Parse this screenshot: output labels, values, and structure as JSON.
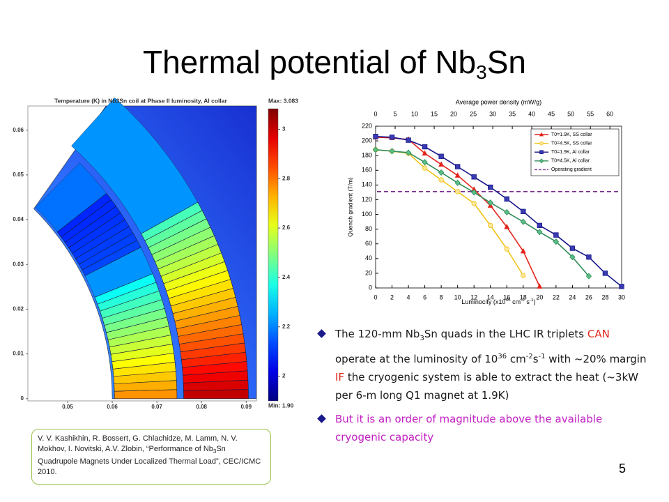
{
  "title": [
    "Thermal potential of Nb",
    "3",
    "Sn"
  ],
  "thermal_plot": {
    "title": "Temperature (K) in Nb3Sn coil at Phase II luminosity, Al collar",
    "max_label": "Max: 3.083",
    "min_label": "Min: 1.90",
    "xlim": [
      0.0411,
      0.0923
    ],
    "ylim": [
      -0.0005,
      0.0654
    ],
    "xticks": [
      0.05,
      0.06,
      0.07,
      0.08,
      0.09
    ],
    "yticks": [
      0,
      0.01,
      0.02,
      0.03,
      0.04,
      0.05,
      0.06
    ],
    "clim": [
      1.9,
      3.083
    ],
    "cticks": [
      2,
      2.2,
      2.4,
      2.6,
      2.8,
      3
    ]
  },
  "chart_data": {
    "type": "line",
    "x2label": "Average power density (mW/g)",
    "xlabel": [
      "Luminocity (x10",
      "35",
      " cm",
      "-2",
      " s",
      "-1",
      ")"
    ],
    "ylabel": "Quench gradient (T/m)",
    "x": [
      0,
      2,
      4,
      6,
      8,
      10,
      12,
      14,
      16,
      18,
      20,
      22,
      24,
      26,
      28,
      30
    ],
    "xlim": [
      0,
      30
    ],
    "xticks": [
      0,
      2,
      4,
      6,
      8,
      10,
      12,
      14,
      16,
      18,
      20,
      22,
      24,
      26,
      28,
      30
    ],
    "x2lim": [
      0,
      63
    ],
    "x2ticks": [
      0,
      5,
      10,
      15,
      20,
      25,
      30,
      35,
      40,
      45,
      50,
      55,
      60
    ],
    "ylim": [
      0,
      220
    ],
    "yticks": [
      0,
      20,
      40,
      60,
      80,
      100,
      120,
      140,
      160,
      180,
      200,
      220
    ],
    "legend": "upper right",
    "series": [
      {
        "name": "T0=1.9K, SS collar",
        "color": "#e3241b",
        "marker": "triangle",
        "marker_fill": "#e3241b",
        "values": [
          205,
          204,
          202,
          183,
          168,
          153,
          134,
          112,
          83,
          50,
          2,
          null,
          null,
          null,
          null,
          null
        ]
      },
      {
        "name": "T0=4.5K, SS collar",
        "color": "#f2c31a",
        "marker": "circle",
        "marker_fill": "#fbe79a",
        "values": [
          188,
          186,
          183,
          163,
          147,
          131,
          115,
          85,
          53,
          17,
          null,
          null,
          null,
          null,
          null,
          null
        ]
      },
      {
        "name": "T0=1.9K, Al collar",
        "color": "#16168a",
        "marker": "square",
        "marker_fill": "#3a3ab0",
        "values": [
          206,
          205,
          201,
          192,
          179,
          165,
          151,
          137,
          121,
          104,
          85,
          72,
          54,
          42,
          20,
          2
        ]
      },
      {
        "name": "T0=4.5K, Al collar",
        "color": "#2e8b57",
        "marker": "diamond",
        "marker_fill": "#5cbf88",
        "values": [
          188,
          186,
          184,
          171,
          157,
          143,
          130,
          116,
          103,
          90,
          76,
          63,
          42,
          16,
          null,
          null
        ]
      }
    ],
    "reference_lines": [
      {
        "name": "Operating gradient",
        "color": "#7b2c8c",
        "value": 131
      }
    ]
  },
  "bullets": [
    [
      "The 120-mm Nb",
      "3",
      "Sn quads in the LHC IR triplets ",
      "CAN",
      " operate at the luminosity of 10",
      "36",
      " cm",
      "-2",
      "s",
      "-1",
      " with ~20% margin ",
      "IF",
      " the cryogenic system is able to extract the heat (~3kW per 6-m long Q1 magnet at 1.9K)"
    ],
    [
      "But it is an order of magnitude above the available cryogenic capacity"
    ]
  ],
  "citation": [
    "V. V. Kashikhin, R. Bossert, G. Chlachidze, M. Lamm, N. V. Mokhov, I. Novitski, A.V. Zlobin, “Performance of Nb",
    "3",
    "Sn Quadrupole Magnets Under Localized Thermal Load”, CEC/ICMC 2010."
  ],
  "page_number": "5"
}
